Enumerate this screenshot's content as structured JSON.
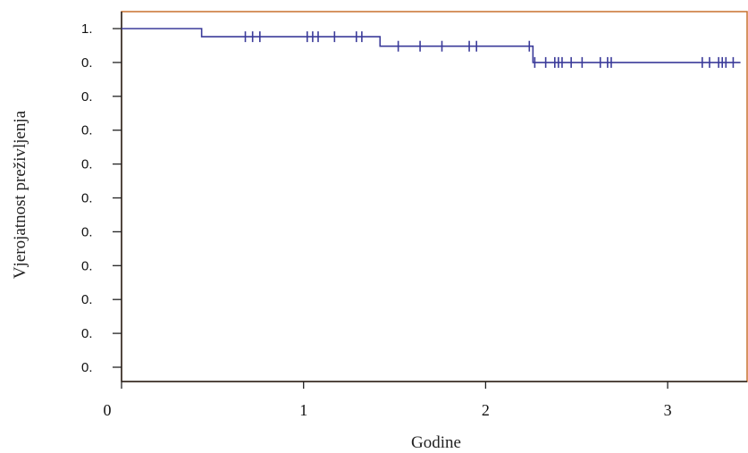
{
  "chart_data": {
    "type": "line",
    "title": "",
    "xlabel": "Godine",
    "ylabel": "Vjerojatnost preživljenja",
    "xlim": [
      0,
      3.4
    ],
    "ylim": [
      0,
      1.05
    ],
    "x_ticks": [
      0,
      1,
      2,
      3
    ],
    "x_tick_labels": [
      "0",
      "1",
      "2",
      "3"
    ],
    "y_ticks": [
      1.0,
      0.9,
      0.8,
      0.7,
      0.6,
      0.5,
      0.4,
      0.3,
      0.2,
      0.1,
      0.0
    ],
    "y_tick_labels": [
      "1.",
      "0.",
      "0.",
      "0.",
      "0.",
      "0.",
      "0.",
      "0.",
      "0.",
      "0.",
      "0."
    ],
    "grid": false,
    "legend": "none",
    "series": [
      {
        "color": "#3b3b9a",
        "steps": [
          {
            "x": 0,
            "y": 1.0
          },
          {
            "x": 0.44,
            "y": 0.976
          },
          {
            "x": 1.42,
            "y": 0.948
          },
          {
            "x": 2.26,
            "y": 0.9
          }
        ],
        "x_end": 3.4,
        "censored": [
          0.68,
          0.72,
          0.76,
          1.02,
          1.05,
          1.08,
          1.17,
          1.29,
          1.32,
          1.52,
          1.64,
          1.76,
          1.91,
          1.95,
          2.24,
          2.27,
          2.33,
          2.38,
          2.4,
          2.42,
          2.47,
          2.53,
          2.63,
          2.67,
          2.69,
          3.19,
          3.23,
          3.28,
          3.3,
          3.32,
          3.36
        ]
      }
    ]
  }
}
